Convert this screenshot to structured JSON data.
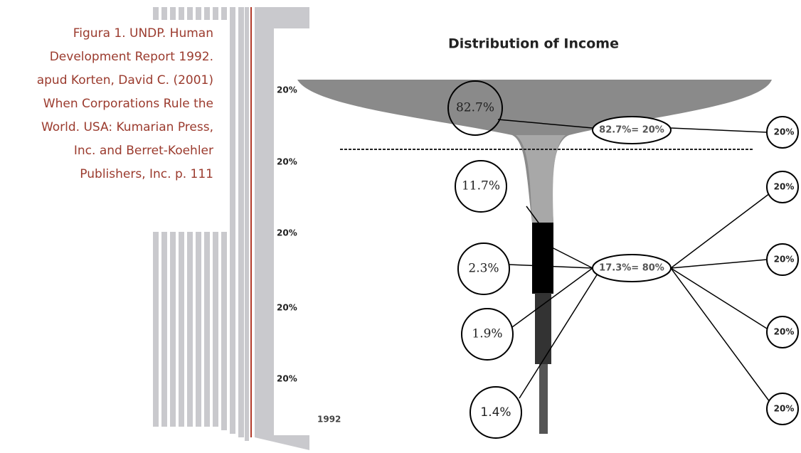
{
  "caption": {
    "lines": [
      "Figura 1. UNDP. Human",
      "Development Report 1992.",
      "apud Korten, David C. (2001)",
      "When Corporations Rule the",
      "World. USA: Kumarian Press,",
      "Inc. and Berret-Koehler",
      "Publishers, Inc. p. 111"
    ]
  },
  "figure": {
    "title": "Distribution of Income",
    "left_labels": [
      "20%",
      "20%",
      "20%",
      "20%",
      "20%"
    ],
    "right_labels": [
      "20%",
      "20%",
      "20%",
      "20%",
      "20%"
    ],
    "circle_labels": [
      "82.7%",
      "11.7%",
      "2.3%",
      "1.9%",
      "1.4%"
    ],
    "ellipse_labels": [
      "82.7%= 20%",
      "17.3%= 80%"
    ],
    "year": "1992"
  }
}
